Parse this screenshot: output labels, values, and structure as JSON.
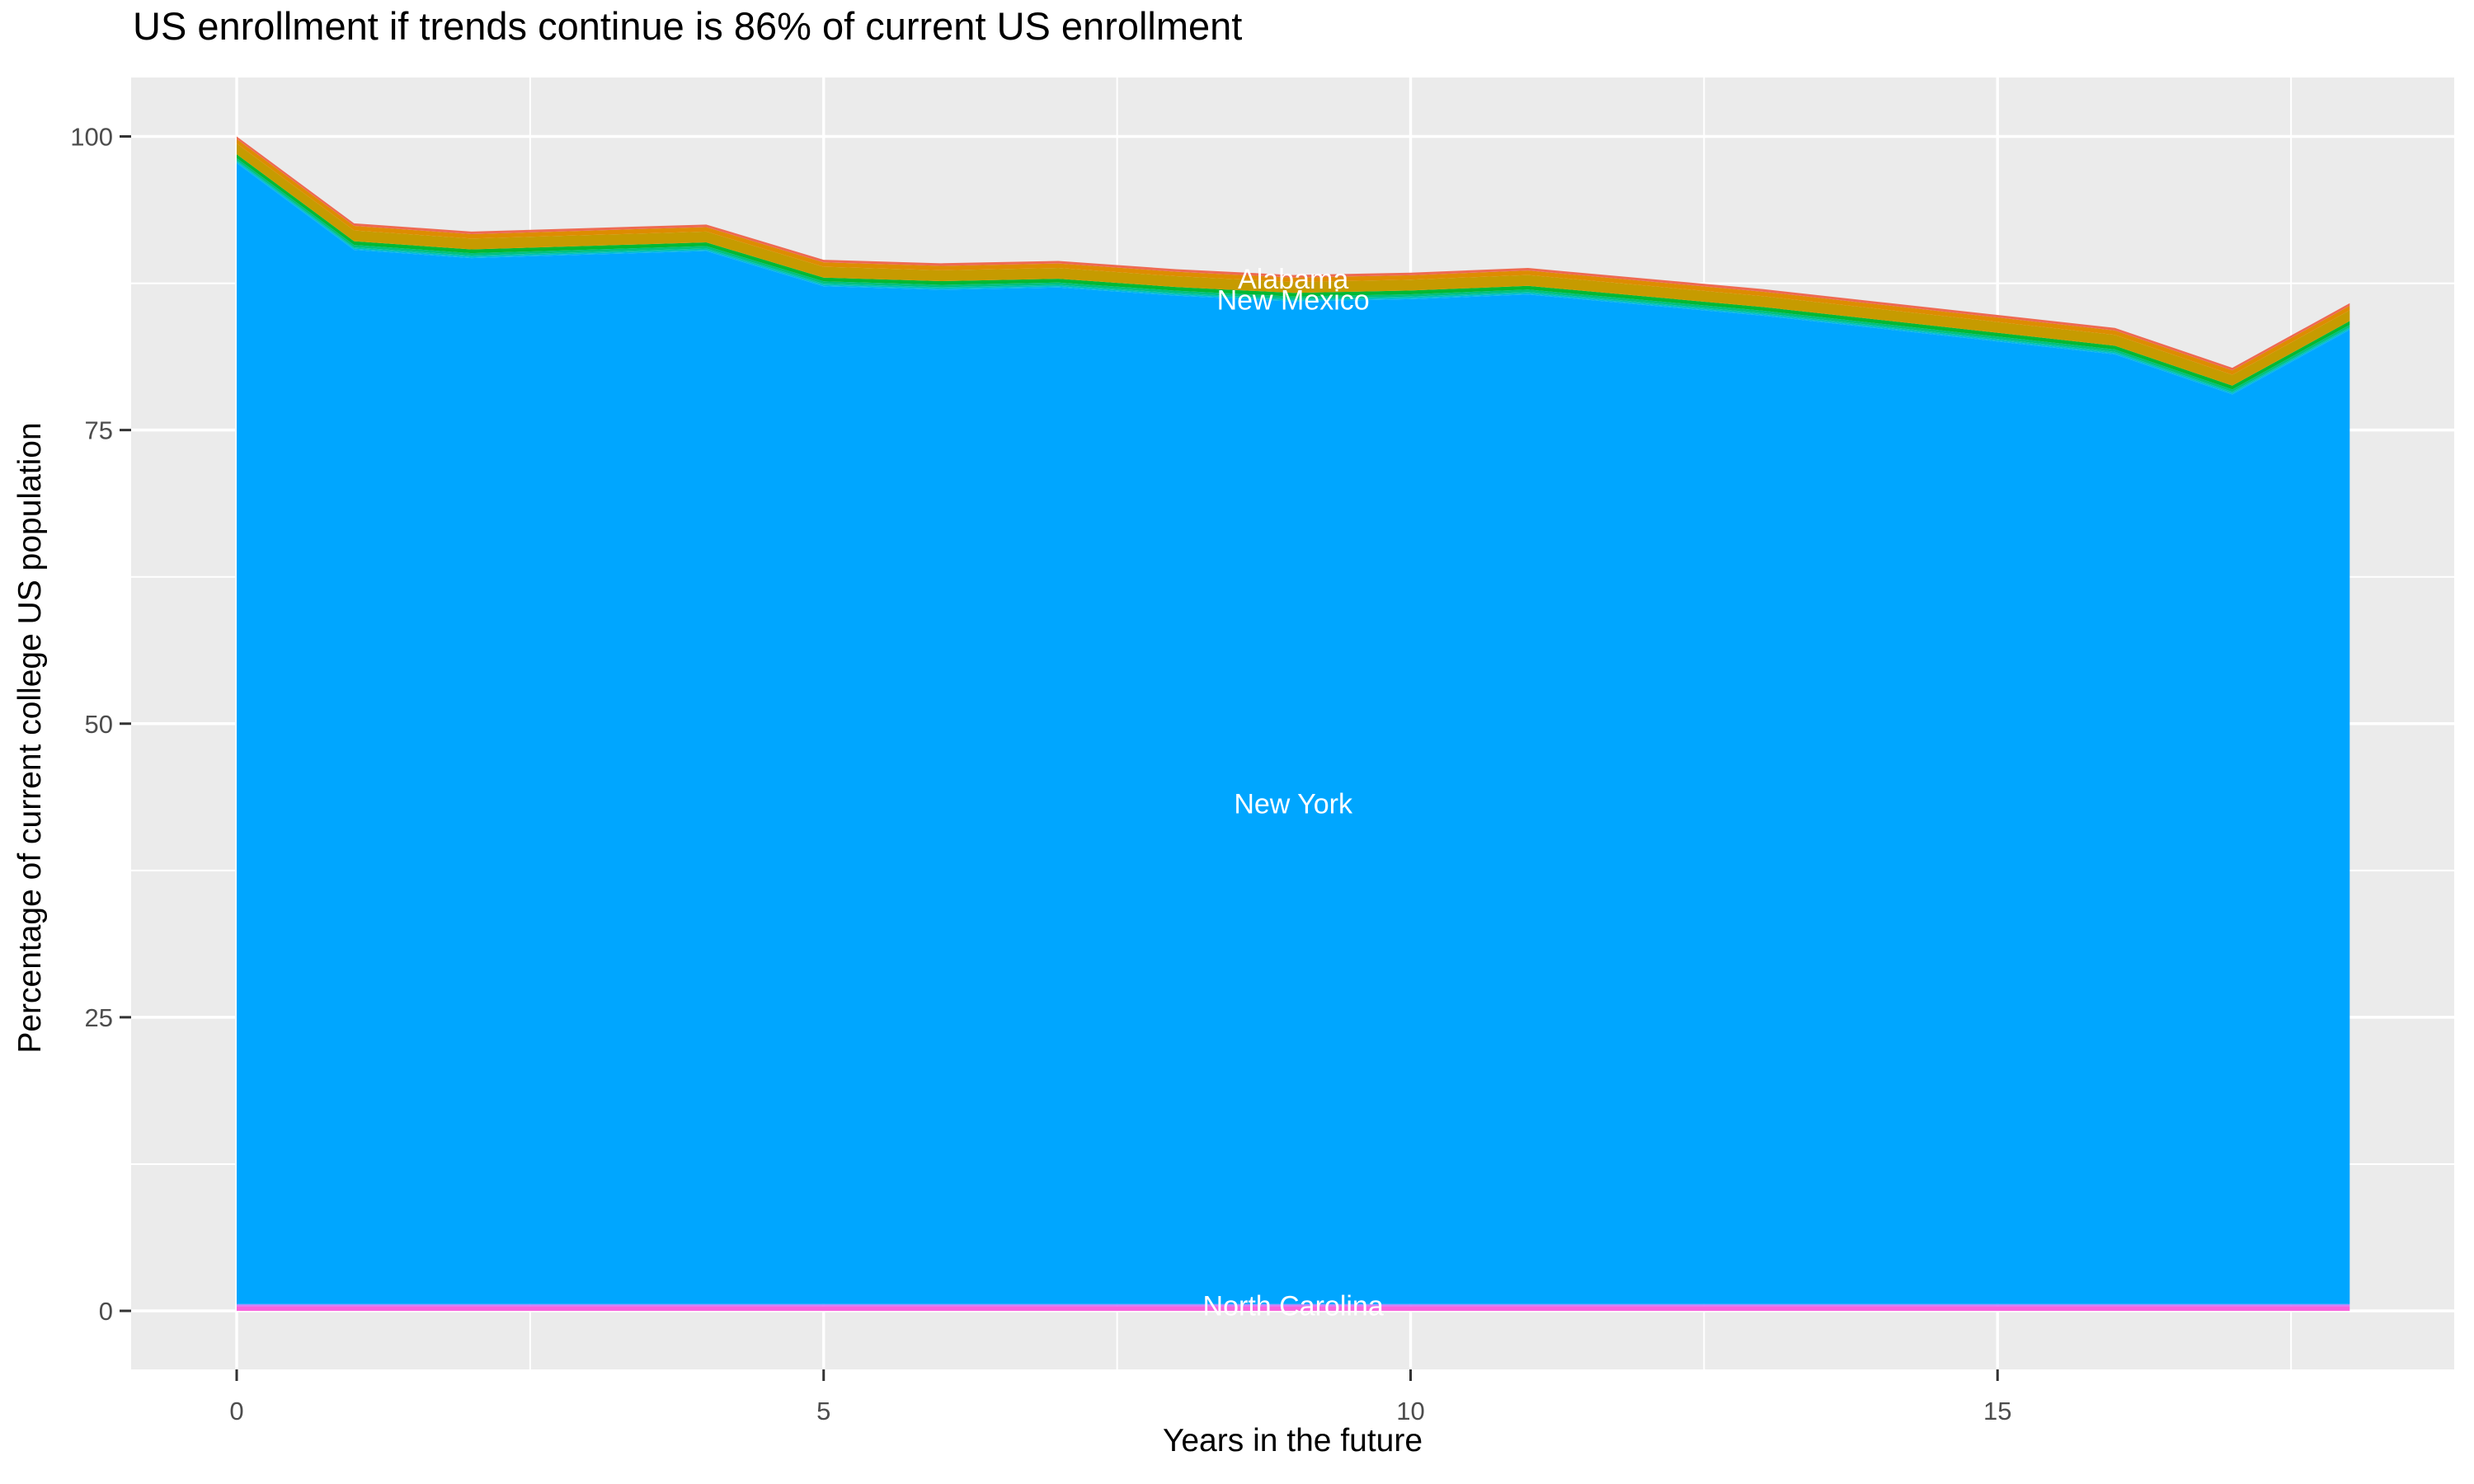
{
  "chart_data": {
    "type": "area",
    "stacked": true,
    "title": "US enrollment if trends continue is 86% of current US enrollment",
    "xlabel": "Years in the future",
    "ylabel": "Percentage of current college US population",
    "x": [
      0,
      1,
      2,
      3,
      4,
      5,
      6,
      7,
      8,
      9,
      10,
      11,
      12,
      13,
      14,
      15,
      16,
      17,
      18
    ],
    "stack_top_totals": [
      100,
      92.6,
      91.9,
      92.2,
      92.5,
      89.5,
      89.2,
      89.4,
      88.7,
      88.2,
      88.4,
      88.8,
      87.9,
      87.0,
      85.9,
      84.8,
      83.7,
      80.3,
      85.8
    ],
    "layers_bottom_to_top": [
      {
        "label": "North Carolina",
        "color": "#F863DC",
        "thickness": 0.38
      },
      {
        "label": "",
        "color": "#DB73F8",
        "thickness": 0.1
      },
      {
        "label": "",
        "color": "#A98CFF",
        "thickness": 0.1
      },
      {
        "label": "New York",
        "color": "#00A6FF",
        "thickness": "rest"
      },
      {
        "label": "New Mexico",
        "color": "#00B8E6",
        "thickness": 0.1
      },
      {
        "label": "",
        "color": "#00C1B3",
        "thickness": 0.12
      },
      {
        "label": "",
        "color": "#00C07F",
        "thickness": 0.2
      },
      {
        "label": "",
        "color": "#00B934",
        "thickness": 0.32
      },
      {
        "label": "Alabama",
        "color": "#C69B00",
        "thickness": 0.92
      },
      {
        "label": "",
        "color": "#DE8C00",
        "thickness": 0.38
      },
      {
        "label": "",
        "color": "#EE6A52",
        "thickness": 0.22
      }
    ],
    "annotations": [
      {
        "text": "Alabama",
        "x": 9,
        "y": 87.9
      },
      {
        "text": "New Mexico",
        "x": 9,
        "y": 86.1
      },
      {
        "text": "New York",
        "x": 9,
        "y": 43.2
      },
      {
        "text": "North Carolina",
        "x": 9,
        "y": 0.45
      }
    ],
    "x_ticks": [
      0,
      5,
      10,
      15
    ],
    "x_minor_ticks": [
      2.5,
      7.5,
      12.5,
      17.5
    ],
    "y_ticks": [
      0,
      25,
      50,
      75,
      100
    ],
    "y_minor_ticks": [
      12.5,
      37.5,
      62.5,
      87.5
    ],
    "xlim": [
      -0.9,
      18.9
    ],
    "ylim": [
      -5,
      105
    ],
    "grid": true,
    "legend": "none",
    "colors": {
      "page_bg": "#FFFFFF",
      "panel_bg": "#EBEBEB",
      "gridline": "#FFFFFF",
      "tick_mark": "#333333",
      "tick_label_text": "#4D4D4D",
      "title_text": "#000000",
      "area_label_text": "#FFFFFF"
    }
  }
}
